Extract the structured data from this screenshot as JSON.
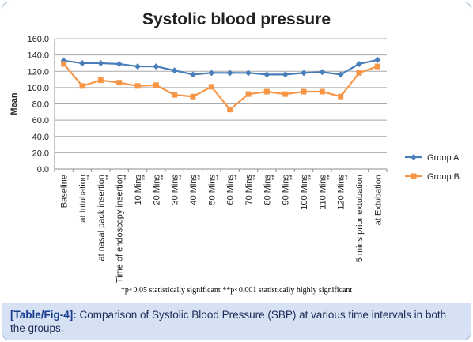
{
  "caption": {
    "tag": "[Table/Fig-4]:",
    "text": " Comparison of Systolic Blood Pressure (SBP) at various time intervals in both the groups."
  },
  "footnote": "*p<0.05 statistically significant **p<0.001 statistically highly significant",
  "chart_data": {
    "type": "line",
    "title": "Systolic blood pressure",
    "xlabel": "",
    "ylabel": "Mean",
    "ylim": [
      0,
      160
    ],
    "yticks": [
      "0.0",
      "20.0",
      "40.0",
      "60.0",
      "80.0",
      "100.0",
      "120.0",
      "140.0",
      "160.0"
    ],
    "grid": true,
    "legend_position": "right",
    "categories": [
      "Baseline",
      "at Intubation",
      "at nasal pack insertion",
      "Time of endoscopy insertion",
      "10 Mins",
      "20 Mins",
      "30 Mins",
      "40 Mins",
      "50 Mins",
      "60 Mins",
      "70 Mins",
      "80 Mins",
      "90 Mins",
      "100 Mins",
      "110 Mins",
      "120 Mins",
      "5 mins prior extubation",
      "at Extubation"
    ],
    "significance": [
      "",
      "**",
      "**",
      "**",
      "**",
      "**",
      "**",
      "**",
      "**",
      "**",
      "**",
      "**",
      "**",
      "**",
      "**",
      "**",
      "",
      ""
    ],
    "series": [
      {
        "name": "Group A",
        "color": "#4a7ebb",
        "marker": "diamond",
        "values": [
          133,
          130,
          130,
          129,
          126,
          126,
          121,
          116,
          118,
          118,
          118,
          116,
          116,
          118,
          119,
          116,
          129,
          134
        ]
      },
      {
        "name": "Group B",
        "color": "#f79646",
        "marker": "square",
        "values": [
          129,
          102,
          109,
          106,
          102,
          103,
          91,
          89,
          101,
          73,
          92,
          95,
          92,
          95,
          95,
          89,
          118,
          126
        ]
      }
    ]
  }
}
